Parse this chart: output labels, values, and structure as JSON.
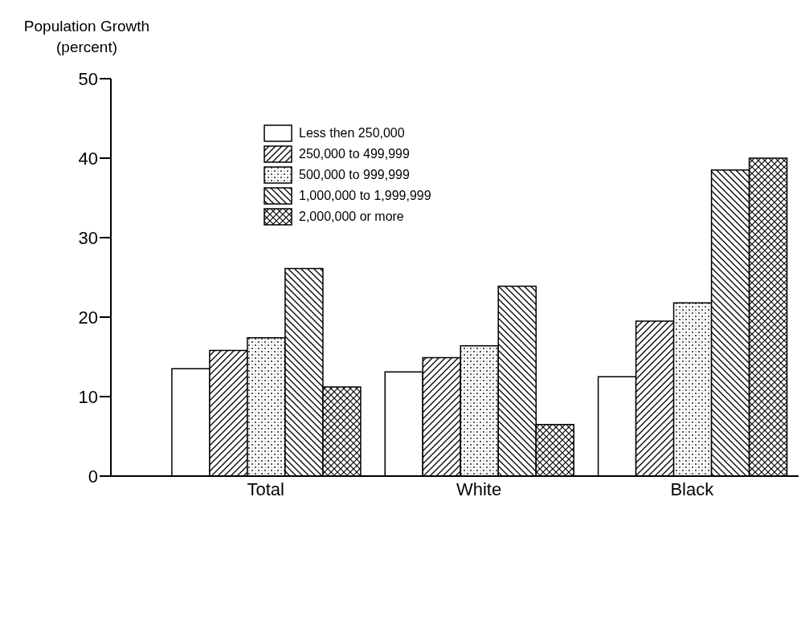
{
  "chart_data": {
    "type": "bar",
    "ylabel": "Population Growth\n(percent)",
    "categories": [
      "Total",
      "White",
      "Black"
    ],
    "series": [
      {
        "name": "Less then 250,000",
        "color": "#ffffff",
        "values": [
          13.5,
          13.1,
          12.5
        ]
      },
      {
        "name": "250,000 to 499,999",
        "color": "#000000",
        "values": [
          15.8,
          14.9,
          19.5
        ]
      },
      {
        "name": "500,000 to 999,999",
        "color": "#000000",
        "values": [
          17.4,
          16.4,
          21.8
        ]
      },
      {
        "name": "1,000,000 to 1,999,999",
        "color": "#000000",
        "values": [
          26.1,
          23.9,
          38.5
        ]
      },
      {
        "name": "2,000,000 or more",
        "color": "#000000",
        "values": [
          11.2,
          6.5,
          40.0
        ]
      }
    ],
    "ylim": [
      0,
      50
    ],
    "yticks": [
      0,
      10,
      20,
      30,
      40,
      50
    ],
    "grid": false,
    "legend": "top"
  }
}
